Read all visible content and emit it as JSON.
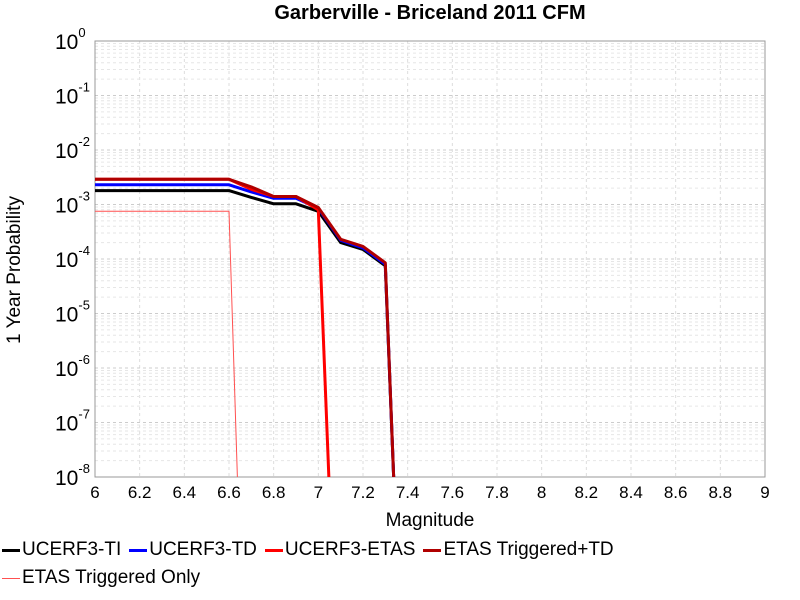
{
  "chart_data": {
    "type": "line",
    "title": "Garberville - Briceland 2011 CFM",
    "xlabel": "Magnitude",
    "ylabel": "1 Year Probability",
    "xlim": [
      6,
      9
    ],
    "ylim": [
      1e-08,
      1
    ],
    "yscale": "log",
    "grid": true,
    "legend_position": "bottom",
    "x_ticks": [
      "6",
      "6.2",
      "6.4",
      "6.6",
      "6.8",
      "7",
      "7.2",
      "7.4",
      "7.6",
      "7.8",
      "8",
      "8.2",
      "8.4",
      "8.6",
      "8.8",
      "9"
    ],
    "y_ticks": [
      {
        "base": "10",
        "exp": "0"
      },
      {
        "base": "10",
        "exp": "-1"
      },
      {
        "base": "10",
        "exp": "-2"
      },
      {
        "base": "10",
        "exp": "-3"
      },
      {
        "base": "10",
        "exp": "-4"
      },
      {
        "base": "10",
        "exp": "-5"
      },
      {
        "base": "10",
        "exp": "-6"
      },
      {
        "base": "10",
        "exp": "-7"
      },
      {
        "base": "10",
        "exp": "-8"
      }
    ],
    "series": [
      {
        "name": "UCERF3-TI",
        "color": "#000000",
        "width": 3,
        "x": [
          6.0,
          6.6,
          6.7,
          6.8,
          6.9,
          7.0,
          7.1,
          7.2,
          7.3,
          7.34
        ],
        "y": [
          0.0018,
          0.0018,
          0.00135,
          0.00103,
          0.00103,
          0.00075,
          0.0002,
          0.00015,
          7.5e-05,
          1e-09
        ]
      },
      {
        "name": "UCERF3-TD",
        "color": "#0000ff",
        "width": 3,
        "x": [
          6.0,
          6.6,
          6.7,
          6.8,
          6.9,
          7.0,
          7.1,
          7.2,
          7.3,
          7.34
        ],
        "y": [
          0.0023,
          0.0023,
          0.0017,
          0.0013,
          0.0013,
          0.00085,
          0.00022,
          0.00016,
          8e-05,
          1e-09
        ]
      },
      {
        "name": "UCERF3-ETAS",
        "color": "#ff0000",
        "width": 3,
        "x": [
          6.0,
          6.6,
          6.7,
          6.8,
          6.9,
          7.0,
          7.05
        ],
        "y": [
          0.0029,
          0.0029,
          0.0019,
          0.0014,
          0.0014,
          0.0008,
          1e-09
        ]
      },
      {
        "name": "ETAS Triggered+TD",
        "color": "#b00000",
        "width": 3,
        "x": [
          6.0,
          6.6,
          6.7,
          6.8,
          6.9,
          7.0,
          7.1,
          7.2,
          7.3,
          7.34
        ],
        "y": [
          0.0029,
          0.0029,
          0.0021,
          0.0014,
          0.0014,
          0.00088,
          0.00023,
          0.00017,
          8.5e-05,
          1e-09
        ]
      },
      {
        "name": "ETAS Triggered Only",
        "color": "#ff5050",
        "width": 1,
        "x": [
          6.0,
          6.6,
          6.64
        ],
        "y": [
          0.00075,
          0.00075,
          1e-09
        ]
      }
    ]
  }
}
